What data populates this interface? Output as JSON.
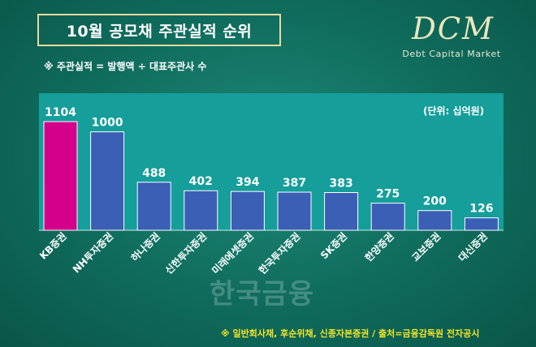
{
  "header": {
    "title": "10월 공모채 주관실적 순위",
    "note": "※ 주관실적 = 발행액 ÷ 대표주관사 수"
  },
  "logo": {
    "mark": "DCM",
    "subtitle": "Debt Capital Market"
  },
  "watermark": "한국금융",
  "footer": {
    "source": "※ 일반회사채, 후순위채, 신종자본증권 / 출처=금융감독원 전자공시"
  },
  "chart_data": {
    "type": "bar",
    "unit_label": "(단위: 십억원)",
    "categories": [
      "KB증권",
      "NH투자증권",
      "하나증권",
      "신한투자증권",
      "미래에셋증권",
      "한국투자증권",
      "SK증권",
      "한양증권",
      "교보증권",
      "대신증권"
    ],
    "values": [
      1104,
      1000,
      488,
      402,
      394,
      387,
      383,
      275,
      200,
      126
    ],
    "highlight_index": 0,
    "ylim": [
      0,
      1104
    ],
    "grid": false,
    "colors": {
      "highlight": "#d4008c",
      "bar": "#3a5fb5",
      "plot_bg": "#159e9a",
      "label": "#ffffff"
    }
  }
}
